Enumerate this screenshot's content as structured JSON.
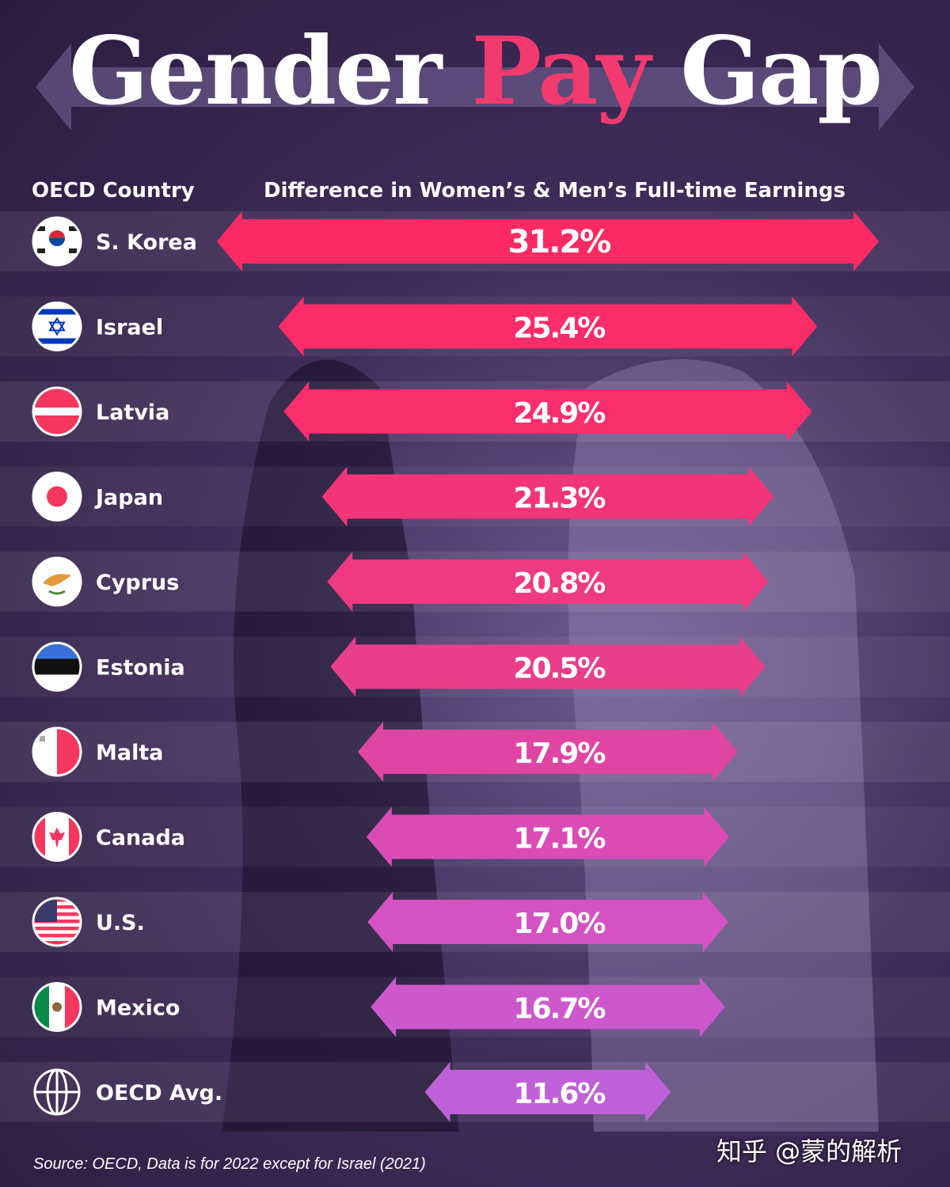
{
  "title": {
    "part1": "Gender",
    "part2": "Pay",
    "part3": "Gap"
  },
  "headers": {
    "country": "OECD Country",
    "metric": "Difference in Women’s & Men’s Full-time Earnings"
  },
  "chart_data": {
    "type": "bar",
    "orientation": "horizontal, centered double-arrows",
    "title": "Gender Pay Gap",
    "xlabel": "Difference in Women’s & Men’s Full-time Earnings",
    "ylabel": "OECD Country",
    "categories": [
      "S. Korea",
      "Israel",
      "Latvia",
      "Japan",
      "Cyprus",
      "Estonia",
      "Malta",
      "Canada",
      "U.S.",
      "Mexico",
      "OECD Avg."
    ],
    "values": [
      31.2,
      25.4,
      24.9,
      21.3,
      20.8,
      20.5,
      17.9,
      17.1,
      17.0,
      16.7,
      11.6
    ],
    "labels": [
      "31.2%",
      "25.4%",
      "24.9%",
      "21.3%",
      "20.8%",
      "20.5%",
      "17.9%",
      "17.1%",
      "17.0%",
      "16.7%",
      "11.6%"
    ],
    "unit": "%",
    "colors": [
      "#fb2a63",
      "#fa2d68",
      "#f82f6c",
      "#f23478",
      "#ee3a80",
      "#e93e8a",
      "#e045a4",
      "#da4cb4",
      "#d452c2",
      "#cc58cc",
      "#c060d8"
    ],
    "flags": [
      "south-korea-flag",
      "israel-flag",
      "latvia-flag",
      "japan-flag",
      "cyprus-flag",
      "estonia-flag",
      "malta-flag",
      "canada-flag",
      "usa-flag",
      "mexico-flag",
      "globe-icon"
    ]
  },
  "source": "Source: OECD, Data is for 2022 except for Israel (2021)",
  "watermark": "知乎 @蒙的解析"
}
